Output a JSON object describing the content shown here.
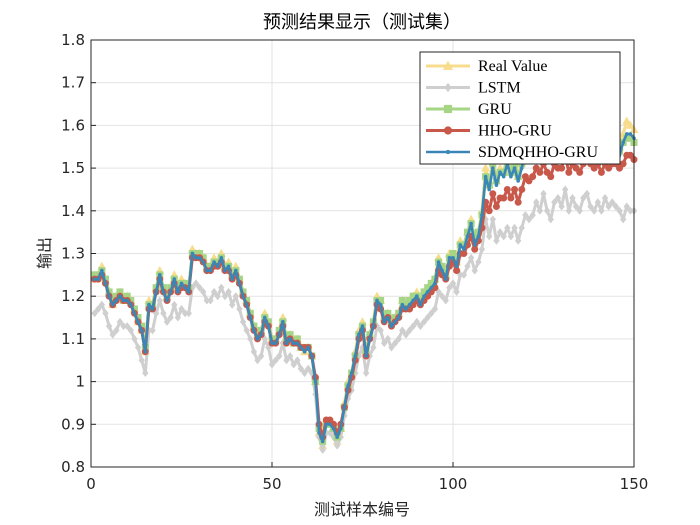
{
  "chart_data": {
    "type": "line",
    "title": "预测结果显示（测试集）",
    "xlabel": "测试样本编号",
    "ylabel": "输出",
    "xlim": [
      0,
      150
    ],
    "ylim": [
      0.8,
      1.8
    ],
    "xticks": [
      0,
      50,
      100,
      150
    ],
    "yticks": [
      0.8,
      0.9,
      1.0,
      1.1,
      1.2,
      1.3,
      1.4,
      1.5,
      1.6,
      1.7,
      1.8
    ],
    "ytick_labels": [
      "0.8",
      "0.9",
      "1",
      "1.1",
      "1.2",
      "1.3",
      "1.4",
      "1.5",
      "1.6",
      "1.7",
      "1.8"
    ],
    "grid": true,
    "legend_position": "top-right",
    "x": [
      1,
      2,
      3,
      4,
      5,
      6,
      7,
      8,
      9,
      10,
      11,
      12,
      13,
      14,
      15,
      16,
      17,
      18,
      19,
      20,
      21,
      22,
      23,
      24,
      25,
      26,
      27,
      28,
      29,
      30,
      31,
      32,
      33,
      34,
      35,
      36,
      37,
      38,
      39,
      40,
      41,
      42,
      43,
      44,
      45,
      46,
      47,
      48,
      49,
      50,
      51,
      52,
      53,
      54,
      55,
      56,
      57,
      58,
      59,
      60,
      61,
      62,
      63,
      64,
      65,
      66,
      67,
      68,
      69,
      70,
      71,
      72,
      73,
      74,
      75,
      76,
      77,
      78,
      79,
      80,
      81,
      82,
      83,
      84,
      85,
      86,
      87,
      88,
      89,
      90,
      91,
      92,
      93,
      94,
      95,
      96,
      97,
      98,
      99,
      100,
      101,
      102,
      103,
      104,
      105,
      106,
      107,
      108,
      109,
      110,
      111,
      112,
      113,
      114,
      115,
      116,
      117,
      118,
      119,
      120,
      121,
      122,
      123,
      124,
      125,
      126,
      127,
      128,
      129,
      130,
      131,
      132,
      133,
      134,
      135,
      136,
      137,
      138,
      139,
      140,
      141,
      142,
      143,
      144,
      145,
      146,
      147,
      148,
      149,
      150
    ],
    "series": [
      {
        "name": "Real Value",
        "color": "#f7dc8c",
        "marker": "triangle",
        "values": [
          1.24,
          1.25,
          1.27,
          1.24,
          1.21,
          1.18,
          1.2,
          1.21,
          1.19,
          1.2,
          1.19,
          1.17,
          1.14,
          1.12,
          1.07,
          1.19,
          1.17,
          1.22,
          1.26,
          1.22,
          1.2,
          1.22,
          1.25,
          1.22,
          1.24,
          1.23,
          1.22,
          1.31,
          1.3,
          1.3,
          1.29,
          1.27,
          1.27,
          1.29,
          1.28,
          1.3,
          1.27,
          1.28,
          1.25,
          1.27,
          1.24,
          1.21,
          1.19,
          1.16,
          1.13,
          1.11,
          1.12,
          1.16,
          1.14,
          1.09,
          1.1,
          1.12,
          1.15,
          1.1,
          1.11,
          1.09,
          1.1,
          1.08,
          1.07,
          1.08,
          1.06,
          1.0,
          0.88,
          0.85,
          0.9,
          0.9,
          0.89,
          0.86,
          0.89,
          0.95,
          1.0,
          1.02,
          1.07,
          1.12,
          1.14,
          1.06,
          1.11,
          1.14,
          1.2,
          1.19,
          1.15,
          1.16,
          1.14,
          1.15,
          1.16,
          1.19,
          1.18,
          1.19,
          1.2,
          1.21,
          1.19,
          1.21,
          1.22,
          1.23,
          1.24,
          1.29,
          1.27,
          1.25,
          1.3,
          1.3,
          1.28,
          1.33,
          1.32,
          1.35,
          1.38,
          1.33,
          1.35,
          1.4,
          1.5,
          1.46,
          1.52,
          1.47,
          1.5,
          1.49,
          1.53,
          1.49,
          1.52,
          1.48,
          1.52,
          1.56,
          1.54,
          1.55,
          1.58,
          1.55,
          1.58,
          1.55,
          1.54,
          1.58,
          1.57,
          1.56,
          1.6,
          1.55,
          1.57,
          1.56,
          1.55,
          1.58,
          1.6,
          1.57,
          1.55,
          1.56,
          1.54,
          1.57,
          1.55,
          1.56,
          1.57,
          1.55,
          1.58,
          1.61,
          1.6,
          1.59
        ]
      },
      {
        "name": "LSTM",
        "color": "#cfcfcf",
        "marker": "diamond",
        "values": [
          1.16,
          1.17,
          1.18,
          1.16,
          1.13,
          1.11,
          1.12,
          1.14,
          1.13,
          1.13,
          1.12,
          1.1,
          1.08,
          1.05,
          1.02,
          1.12,
          1.12,
          1.16,
          1.19,
          1.16,
          1.14,
          1.15,
          1.18,
          1.15,
          1.17,
          1.16,
          1.16,
          1.22,
          1.23,
          1.22,
          1.21,
          1.19,
          1.19,
          1.21,
          1.2,
          1.22,
          1.2,
          1.21,
          1.18,
          1.2,
          1.17,
          1.14,
          1.12,
          1.1,
          1.07,
          1.05,
          1.06,
          1.1,
          1.08,
          1.04,
          1.05,
          1.06,
          1.09,
          1.05,
          1.06,
          1.04,
          1.05,
          1.03,
          1.02,
          1.03,
          1.02,
          0.97,
          0.87,
          0.84,
          0.88,
          0.88,
          0.87,
          0.85,
          0.87,
          0.92,
          0.96,
          0.98,
          1.02,
          1.06,
          1.08,
          1.02,
          1.06,
          1.08,
          1.13,
          1.12,
          1.09,
          1.1,
          1.08,
          1.09,
          1.1,
          1.12,
          1.11,
          1.12,
          1.13,
          1.14,
          1.13,
          1.14,
          1.15,
          1.16,
          1.17,
          1.21,
          1.2,
          1.19,
          1.22,
          1.23,
          1.21,
          1.25,
          1.25,
          1.27,
          1.29,
          1.26,
          1.28,
          1.31,
          1.38,
          1.34,
          1.38,
          1.33,
          1.35,
          1.34,
          1.36,
          1.34,
          1.36,
          1.33,
          1.36,
          1.39,
          1.38,
          1.39,
          1.42,
          1.4,
          1.44,
          1.4,
          1.38,
          1.42,
          1.43,
          1.41,
          1.45,
          1.4,
          1.43,
          1.41,
          1.4,
          1.43,
          1.44,
          1.41,
          1.4,
          1.42,
          1.4,
          1.43,
          1.41,
          1.42,
          1.41,
          1.4,
          1.38,
          1.41,
          1.4,
          1.4
        ]
      },
      {
        "name": "GRU",
        "color": "#a6d585",
        "marker": "square",
        "values": [
          1.25,
          1.25,
          1.26,
          1.24,
          1.21,
          1.19,
          1.2,
          1.21,
          1.19,
          1.2,
          1.19,
          1.17,
          1.15,
          1.13,
          1.08,
          1.18,
          1.18,
          1.22,
          1.25,
          1.22,
          1.2,
          1.22,
          1.24,
          1.22,
          1.23,
          1.23,
          1.22,
          1.3,
          1.3,
          1.3,
          1.29,
          1.27,
          1.27,
          1.28,
          1.28,
          1.29,
          1.27,
          1.27,
          1.25,
          1.26,
          1.24,
          1.21,
          1.19,
          1.16,
          1.13,
          1.11,
          1.12,
          1.15,
          1.14,
          1.1,
          1.1,
          1.12,
          1.14,
          1.1,
          1.11,
          1.09,
          1.1,
          1.08,
          1.08,
          1.08,
          1.06,
          1.0,
          0.89,
          0.86,
          0.9,
          0.9,
          0.89,
          0.87,
          0.89,
          0.94,
          0.99,
          1.02,
          1.06,
          1.11,
          1.13,
          1.07,
          1.11,
          1.14,
          1.19,
          1.19,
          1.15,
          1.16,
          1.14,
          1.15,
          1.16,
          1.19,
          1.18,
          1.19,
          1.2,
          1.2,
          1.19,
          1.21,
          1.22,
          1.23,
          1.24,
          1.28,
          1.27,
          1.25,
          1.29,
          1.3,
          1.28,
          1.32,
          1.32,
          1.35,
          1.37,
          1.34,
          1.35,
          1.39,
          1.48,
          1.46,
          1.51,
          1.47,
          1.49,
          1.49,
          1.52,
          1.49,
          1.51,
          1.48,
          1.51,
          1.55,
          1.53,
          1.54,
          1.57,
          1.55,
          1.57,
          1.55,
          1.54,
          1.57,
          1.56,
          1.55,
          1.59,
          1.55,
          1.56,
          1.55,
          1.54,
          1.57,
          1.59,
          1.56,
          1.54,
          1.55,
          1.53,
          1.56,
          1.54,
          1.55,
          1.56,
          1.54,
          1.56,
          1.57,
          1.57,
          1.56
        ]
      },
      {
        "name": "HHO-GRU",
        "color": "#c8584a",
        "marker": "circle",
        "values": [
          1.24,
          1.24,
          1.25,
          1.23,
          1.2,
          1.18,
          1.19,
          1.2,
          1.19,
          1.19,
          1.18,
          1.16,
          1.14,
          1.12,
          1.07,
          1.17,
          1.17,
          1.21,
          1.24,
          1.21,
          1.19,
          1.21,
          1.23,
          1.21,
          1.22,
          1.22,
          1.21,
          1.29,
          1.29,
          1.29,
          1.28,
          1.26,
          1.26,
          1.27,
          1.27,
          1.28,
          1.26,
          1.26,
          1.24,
          1.25,
          1.23,
          1.2,
          1.18,
          1.15,
          1.12,
          1.1,
          1.11,
          1.14,
          1.13,
          1.09,
          1.09,
          1.11,
          1.13,
          1.09,
          1.1,
          1.09,
          1.09,
          1.08,
          1.08,
          1.08,
          1.06,
          1.01,
          0.9,
          0.87,
          0.91,
          0.91,
          0.9,
          0.88,
          0.9,
          0.94,
          0.98,
          1.01,
          1.05,
          1.1,
          1.12,
          1.06,
          1.1,
          1.13,
          1.18,
          1.17,
          1.14,
          1.15,
          1.13,
          1.14,
          1.15,
          1.17,
          1.17,
          1.17,
          1.18,
          1.19,
          1.18,
          1.19,
          1.2,
          1.21,
          1.22,
          1.26,
          1.25,
          1.24,
          1.27,
          1.28,
          1.26,
          1.3,
          1.3,
          1.32,
          1.34,
          1.31,
          1.33,
          1.36,
          1.42,
          1.4,
          1.44,
          1.41,
          1.43,
          1.43,
          1.45,
          1.43,
          1.45,
          1.42,
          1.45,
          1.48,
          1.47,
          1.48,
          1.5,
          1.49,
          1.51,
          1.49,
          1.48,
          1.51,
          1.5,
          1.5,
          1.53,
          1.49,
          1.51,
          1.5,
          1.49,
          1.51,
          1.53,
          1.51,
          1.5,
          1.51,
          1.49,
          1.51,
          1.5,
          1.51,
          1.51,
          1.5,
          1.51,
          1.53,
          1.53,
          1.52
        ]
      },
      {
        "name": "SDMQHHO-GRU",
        "color": "#3a87b7",
        "marker": "dot",
        "values": [
          1.24,
          1.24,
          1.26,
          1.23,
          1.2,
          1.18,
          1.19,
          1.2,
          1.19,
          1.19,
          1.18,
          1.16,
          1.14,
          1.12,
          1.07,
          1.18,
          1.17,
          1.21,
          1.25,
          1.21,
          1.19,
          1.21,
          1.24,
          1.21,
          1.23,
          1.22,
          1.21,
          1.3,
          1.29,
          1.29,
          1.28,
          1.26,
          1.26,
          1.28,
          1.27,
          1.29,
          1.26,
          1.27,
          1.24,
          1.26,
          1.23,
          1.2,
          1.18,
          1.15,
          1.12,
          1.1,
          1.11,
          1.15,
          1.13,
          1.09,
          1.09,
          1.11,
          1.14,
          1.09,
          1.1,
          1.09,
          1.09,
          1.08,
          1.07,
          1.08,
          1.06,
          1.0,
          0.88,
          0.86,
          0.9,
          0.9,
          0.89,
          0.87,
          0.89,
          0.94,
          0.99,
          1.02,
          1.06,
          1.11,
          1.13,
          1.06,
          1.1,
          1.13,
          1.19,
          1.18,
          1.14,
          1.15,
          1.13,
          1.14,
          1.15,
          1.18,
          1.17,
          1.18,
          1.19,
          1.2,
          1.18,
          1.2,
          1.21,
          1.22,
          1.23,
          1.28,
          1.26,
          1.24,
          1.29,
          1.29,
          1.27,
          1.32,
          1.31,
          1.34,
          1.37,
          1.32,
          1.34,
          1.39,
          1.48,
          1.45,
          1.5,
          1.46,
          1.49,
          1.48,
          1.51,
          1.48,
          1.5,
          1.47,
          1.5,
          1.54,
          1.52,
          1.53,
          1.56,
          1.54,
          1.56,
          1.54,
          1.53,
          1.56,
          1.55,
          1.54,
          1.58,
          1.54,
          1.55,
          1.54,
          1.53,
          1.56,
          1.58,
          1.55,
          1.53,
          1.54,
          1.52,
          1.55,
          1.53,
          1.54,
          1.55,
          1.53,
          1.56,
          1.58,
          1.58,
          1.57
        ]
      }
    ]
  }
}
